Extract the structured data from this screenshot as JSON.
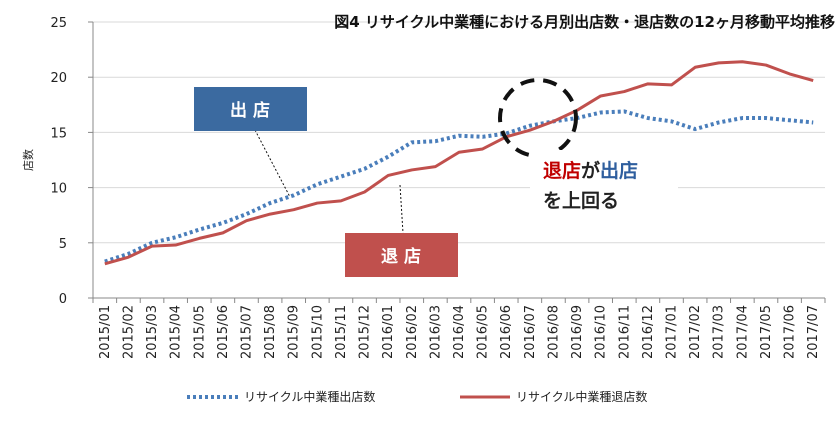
{
  "chart_data": {
    "type": "line",
    "title": "図4 リサイクル中業種における月別出店数・退店数の12ヶ月移動平均推移",
    "ylabel": "店数",
    "xlabel": "",
    "ylim": [
      0,
      25
    ],
    "yticks": [
      0,
      5,
      10,
      15,
      20,
      25
    ],
    "grid": true,
    "legend_position": "bottom",
    "categories": [
      "2015/01",
      "2015/02",
      "2015/03",
      "2015/04",
      "2015/05",
      "2015/06",
      "2015/07",
      "2015/08",
      "2015/09",
      "2015/10",
      "2015/11",
      "2015/12",
      "2016/01",
      "2016/02",
      "2016/03",
      "2016/04",
      "2016/05",
      "2016/06",
      "2016/07",
      "2016/08",
      "2016/09",
      "2016/10",
      "2016/11",
      "2016/12",
      "2017/01",
      "2017/02",
      "2017/03",
      "2017/04",
      "2017/05",
      "2017/06",
      "2017/07"
    ],
    "series": [
      {
        "name": "リサイクル中業種出店数",
        "color": "#4a7ebb",
        "style": "dotted",
        "values": [
          3.3,
          4.0,
          5.0,
          5.5,
          6.2,
          6.8,
          7.6,
          8.6,
          9.3,
          10.3,
          11.0,
          11.7,
          12.8,
          14.1,
          14.2,
          14.7,
          14.6,
          14.9,
          15.6,
          16.0,
          16.3,
          16.8,
          16.9,
          16.3,
          16.0,
          15.3,
          15.9,
          16.3,
          16.3,
          16.1,
          15.9
        ]
      },
      {
        "name": "リサイクル中業種退店数",
        "color": "#c0504d",
        "style": "solid",
        "values": [
          3.1,
          3.7,
          4.7,
          4.8,
          5.4,
          5.9,
          7.0,
          7.6,
          8.0,
          8.6,
          8.8,
          9.6,
          11.1,
          11.6,
          11.9,
          13.2,
          13.5,
          14.6,
          15.2,
          16.0,
          17.0,
          18.3,
          18.7,
          19.4,
          19.3,
          20.9,
          21.3,
          21.4,
          21.1,
          20.3,
          19.7
        ]
      }
    ],
    "annotations": {
      "open_box": "出 店",
      "close_box": "退 店",
      "note_part1": "退店",
      "note_part2": "が",
      "note_part3": "出店",
      "note_line2": "を上回る"
    },
    "colors": {
      "open_box": "#3b6aa0",
      "close_box": "#c0504d",
      "axis": "#888888",
      "grid": "#d9d9d9"
    }
  }
}
